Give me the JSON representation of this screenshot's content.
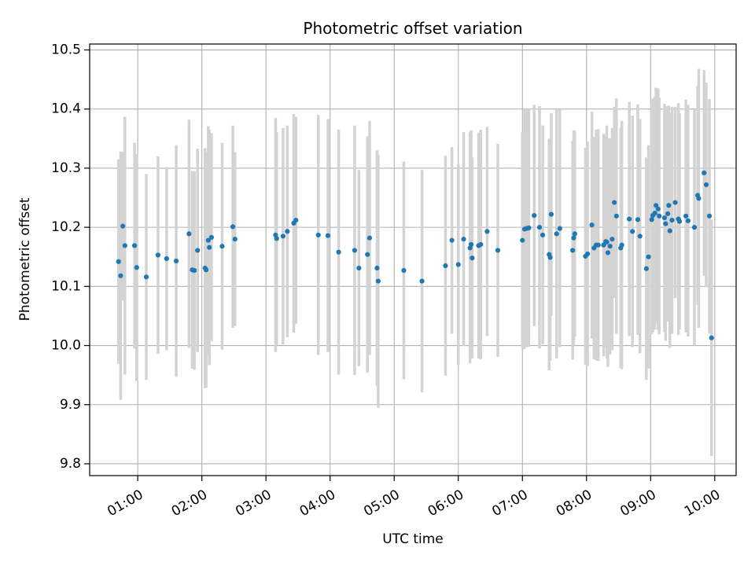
{
  "chart_data": {
    "type": "scatter",
    "title": "Photometric offset variation",
    "xlabel": "UTC time",
    "ylabel": "Photometric offset",
    "x_unit": "UTC hours",
    "xlim": [
      "00:15",
      "10:20"
    ],
    "ylim": [
      9.78,
      10.51
    ],
    "x_ticks": [
      "01:00",
      "02:00",
      "03:00",
      "04:00",
      "05:00",
      "06:00",
      "07:00",
      "08:00",
      "09:00",
      "10:00"
    ],
    "y_ticks": [
      "9.8",
      "9.9",
      "10.0",
      "10.1",
      "10.2",
      "10.3",
      "10.4",
      "10.5"
    ],
    "grid": true,
    "point_color": "#1f77b4",
    "errorbar_color": "#d3d3d3",
    "points": [
      [
        "00:42",
        10.142,
        0.173
      ],
      [
        "00:44",
        10.118,
        0.21
      ],
      [
        "00:46",
        10.202,
        0.126
      ],
      [
        "00:48",
        10.169,
        0.218
      ],
      [
        "00:57",
        10.169,
        0.174
      ],
      [
        "00:59",
        10.132,
        0.192
      ],
      [
        "01:08",
        10.116,
        0.174
      ],
      [
        "01:19",
        10.153,
        0.167
      ],
      [
        "01:27",
        10.147,
        0.155
      ],
      [
        "01:36",
        10.143,
        0.196
      ],
      [
        "01:48",
        10.189,
        0.193
      ],
      [
        "01:51",
        10.128,
        0.167
      ],
      [
        "01:53",
        10.127,
        0.168
      ],
      [
        "01:56",
        10.161,
        0.172
      ],
      [
        "02:03",
        10.131,
        0.203
      ],
      [
        "02:04",
        10.128,
        0.199
      ],
      [
        "02:06",
        10.178,
        0.193
      ],
      [
        "02:07",
        10.166,
        0.199
      ],
      [
        "02:09",
        10.183,
        0.176
      ],
      [
        "02:19",
        10.168,
        0.175
      ],
      [
        "02:29",
        10.201,
        0.171
      ],
      [
        "02:31",
        10.18,
        0.147
      ],
      [
        "03:09",
        10.187,
        0.198
      ],
      [
        "03:10",
        10.181,
        0.18
      ],
      [
        "03:16",
        10.185,
        0.183
      ],
      [
        "03:20",
        10.193,
        0.179
      ],
      [
        "03:26",
        10.207,
        0.185
      ],
      [
        "03:28",
        10.212,
        0.175
      ],
      [
        "03:49",
        10.187,
        0.203
      ],
      [
        "03:58",
        10.186,
        0.197
      ],
      [
        "04:08",
        10.158,
        0.207
      ],
      [
        "04:23",
        10.161,
        0.211
      ],
      [
        "04:27",
        10.131,
        0.166
      ],
      [
        "04:35",
        10.154,
        0.2
      ],
      [
        "04:37",
        10.182,
        0.198
      ],
      [
        "04:44",
        10.131,
        0.199
      ],
      [
        "04:45",
        10.109,
        0.214
      ],
      [
        "05:09",
        10.127,
        0.184
      ],
      [
        "05:26",
        10.109,
        0.188
      ],
      [
        "05:48",
        10.135,
        0.186
      ],
      [
        "05:54",
        10.178,
        0.158
      ],
      [
        "06:00",
        10.137,
        0.17
      ],
      [
        "06:05",
        10.18,
        0.181
      ],
      [
        "06:11",
        10.165,
        0.195
      ],
      [
        "06:12",
        10.171,
        0.193
      ],
      [
        "06:13",
        10.148,
        0.17
      ],
      [
        "06:19",
        10.169,
        0.191
      ],
      [
        "06:21",
        10.171,
        0.194
      ],
      [
        "06:27",
        10.193,
        0.177
      ],
      [
        "06:37",
        10.161,
        0.18
      ],
      [
        "07:00",
        10.178,
        0.183
      ],
      [
        "07:02",
        10.197,
        0.203
      ],
      [
        "07:04",
        10.198,
        0.201
      ],
      [
        "07:06",
        10.199,
        0.201
      ],
      [
        "07:11",
        10.22,
        0.187
      ],
      [
        "07:16",
        10.2,
        0.205
      ],
      [
        "07:19",
        10.187,
        0.185
      ],
      [
        "07:25",
        10.154,
        0.196
      ],
      [
        "07:26",
        10.149,
        0.175
      ],
      [
        "07:27",
        10.222,
        0.171
      ],
      [
        "07:32",
        10.189,
        0.211
      ],
      [
        "07:35",
        10.198,
        0.201
      ],
      [
        "07:47",
        10.161,
        0.185
      ],
      [
        "07:48",
        10.182,
        0.182
      ],
      [
        "07:49",
        10.189,
        0.174
      ],
      [
        "07:59",
        10.151,
        0.184
      ],
      [
        "08:01",
        10.155,
        0.19
      ],
      [
        "08:05",
        10.204,
        0.192
      ],
      [
        "08:07",
        10.165,
        0.188
      ],
      [
        "08:09",
        10.17,
        0.195
      ],
      [
        "08:11",
        10.17,
        0.196
      ],
      [
        "08:16",
        10.17,
        0.188
      ],
      [
        "08:18",
        10.176,
        0.179
      ],
      [
        "08:19",
        10.175,
        0.197
      ],
      [
        "08:20",
        10.157,
        0.193
      ],
      [
        "08:22",
        10.168,
        0.183
      ],
      [
        "08:24",
        10.18,
        0.188
      ],
      [
        "08:26",
        10.242,
        0.162
      ],
      [
        "08:28",
        10.219,
        0.199
      ],
      [
        "08:32",
        10.165,
        0.203
      ],
      [
        "08:33",
        10.17,
        0.21
      ],
      [
        "08:40",
        10.214,
        0.198
      ],
      [
        "08:43",
        10.193,
        0.196
      ],
      [
        "08:48",
        10.213,
        0.195
      ],
      [
        "08:50",
        10.185,
        0.198
      ],
      [
        "08:56",
        10.13,
        0.188
      ],
      [
        "08:58",
        10.15,
        0.189
      ],
      [
        "09:01",
        10.213,
        0.194
      ],
      [
        "09:02",
        10.22,
        0.198
      ],
      [
        "09:04",
        10.224,
        0.197
      ],
      [
        "09:05",
        10.237,
        0.199
      ],
      [
        "09:07",
        10.231,
        0.204
      ],
      [
        "09:08",
        10.219,
        0.2
      ],
      [
        "09:13",
        10.216,
        0.193
      ],
      [
        "09:14",
        10.206,
        0.198
      ],
      [
        "09:16",
        10.223,
        0.182
      ],
      [
        "09:17",
        10.237,
        0.169
      ],
      [
        "09:18",
        10.194,
        0.198
      ],
      [
        "09:20",
        10.212,
        0.192
      ],
      [
        "09:23",
        10.242,
        0.162
      ],
      [
        "09:26",
        10.214,
        0.196
      ],
      [
        "09:27",
        10.21,
        0.183
      ],
      [
        "09:33",
        10.219,
        0.197
      ],
      [
        "09:35",
        10.211,
        0.196
      ],
      [
        "09:41",
        10.2,
        0.2
      ],
      [
        "09:44",
        10.254,
        0.185
      ],
      [
        "09:45",
        10.249,
        0.219
      ],
      [
        "09:50",
        10.292,
        0.174
      ],
      [
        "09:52",
        10.272,
        0.173
      ],
      [
        "09:55",
        10.219,
        0.198
      ],
      [
        "09:57",
        10.013,
        0.2
      ]
    ]
  }
}
